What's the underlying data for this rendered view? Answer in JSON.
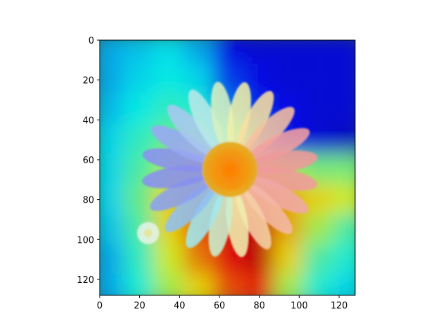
{
  "chart_data": {
    "type": "heatmap",
    "title": "",
    "xlabel": "",
    "ylabel": "",
    "xlim": [
      0,
      128
    ],
    "ylim": [
      128,
      0
    ],
    "y_axis_inverted": true,
    "grid": false,
    "colormap": "jet",
    "overlay_alpha": 0.45,
    "underlying_image": "daisy flower photo",
    "xticks": [
      0,
      20,
      40,
      60,
      80,
      100,
      120
    ],
    "yticks": [
      0,
      20,
      40,
      60,
      80,
      100,
      120
    ],
    "xtick_labels": [
      "0",
      "20",
      "40",
      "60",
      "80",
      "100",
      "120"
    ],
    "ytick_labels": [
      "0",
      "20",
      "40",
      "60",
      "80",
      "100",
      "120"
    ],
    "heat_values_grid": {
      "rows_y": [
        5,
        20,
        35,
        50,
        65,
        80,
        95,
        110,
        125
      ],
      "cols_x": [
        5,
        20,
        35,
        50,
        65,
        80,
        95,
        110,
        125
      ],
      "values": [
        [
          0.3,
          0.33,
          0.36,
          0.3,
          0.12,
          0.1,
          0.1,
          0.1,
          0.1
        ],
        [
          0.3,
          0.35,
          0.38,
          0.35,
          0.18,
          0.12,
          0.1,
          0.1,
          0.1
        ],
        [
          0.32,
          0.38,
          0.42,
          0.4,
          0.25,
          0.15,
          0.12,
          0.1,
          0.1
        ],
        [
          0.35,
          0.42,
          0.48,
          0.52,
          0.4,
          0.25,
          0.12,
          0.1,
          0.08
        ],
        [
          0.35,
          0.45,
          0.55,
          0.62,
          0.7,
          0.65,
          0.55,
          0.5,
          0.5
        ],
        [
          0.35,
          0.48,
          0.65,
          0.78,
          0.85,
          0.8,
          0.7,
          0.65,
          0.6
        ],
        [
          0.33,
          0.45,
          0.65,
          0.8,
          0.9,
          0.92,
          0.7,
          0.55,
          0.45
        ],
        [
          0.3,
          0.42,
          0.6,
          0.75,
          0.88,
          0.92,
          0.65,
          0.45,
          0.4
        ],
        [
          0.3,
          0.4,
          0.55,
          0.65,
          0.8,
          0.85,
          0.55,
          0.4,
          0.35
        ]
      ]
    }
  }
}
